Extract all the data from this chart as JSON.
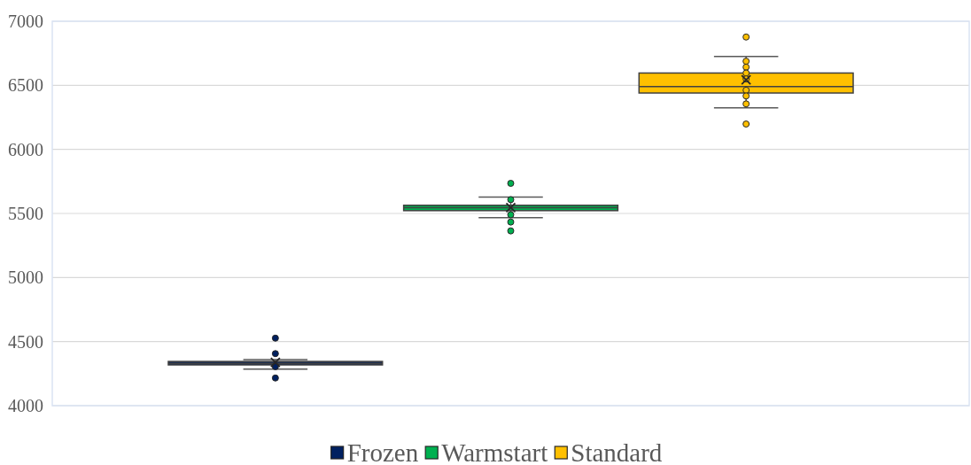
{
  "chart_data": {
    "type": "box",
    "categories": [
      null
    ],
    "series": [
      {
        "name": "Frozen",
        "color": "#002060",
        "boxes": [
          {
            "low": 4285,
            "q1": 4318,
            "median": 4330,
            "q3": 4345,
            "high": 4360,
            "mean": 4338,
            "outliers": [
              4527,
              4406,
              4304,
              4216
            ]
          }
        ]
      },
      {
        "name": "Warmstart",
        "color": "#00b050",
        "boxes": [
          {
            "low": 5467,
            "q1": 5522,
            "median": 5545,
            "q3": 5564,
            "high": 5628,
            "mean": 5546,
            "outliers": [
              5735,
              5608,
              5490,
              5433,
              5364
            ]
          }
        ]
      },
      {
        "name": "Standard",
        "color": "#ffc000",
        "boxes": [
          {
            "low": 6324,
            "q1": 6440,
            "median": 6490,
            "q3": 6596,
            "high": 6725,
            "mean": 6543,
            "outliers": [
              6877,
              6688,
              6642,
              6596,
              6550,
              6462,
              6417,
              6355,
              6198
            ]
          }
        ]
      }
    ],
    "ylim": [
      4000,
      7000
    ],
    "yticks": [
      4000,
      4500,
      5000,
      5500,
      6000,
      6500,
      7000
    ],
    "grid": "y",
    "legend": "bottom",
    "tick_labels": "y",
    "marker": "circle"
  }
}
